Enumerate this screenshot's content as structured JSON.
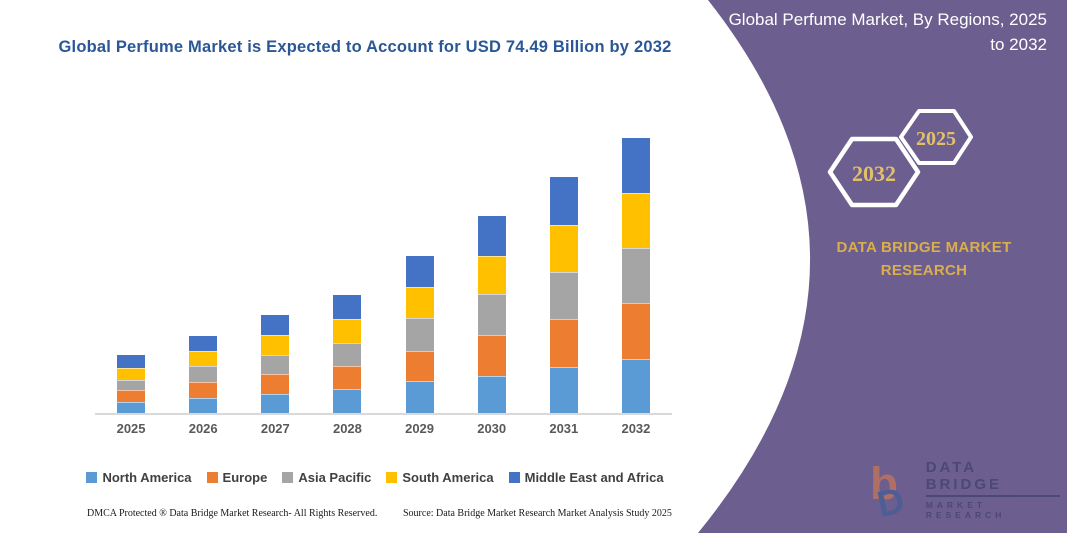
{
  "header": {
    "title": "Global Perfume Market is Expected to Account for USD 74.49 Billion by 2032"
  },
  "sidebar": {
    "title": "Global Perfume Market, By Regions, 2025 to 2032",
    "hexagon_back_label": "2032",
    "hexagon_front_label": "2025",
    "brand": "DATA BRIDGE MARKET RESEARCH",
    "logo": {
      "name": "DATA BRIDGE",
      "subname": "MARKET RESEARCH"
    },
    "colors": {
      "panel_purple": "#6C5E8F",
      "gold_text": "#D9AE4E",
      "hexagon_outline": "#FFFFFF"
    }
  },
  "chart_data": {
    "type": "bar",
    "stacked": true,
    "title": "Global Perfume Market is Expected to Account for USD 74.49 Billion by 2032",
    "unit": "USD Billion",
    "categories": [
      "2025",
      "2026",
      "2027",
      "2028",
      "2029",
      "2030",
      "2031",
      "2032"
    ],
    "series": [
      {
        "name": "North America",
        "color": "#5B9BD5",
        "values": [
          3.1,
          4.0,
          5.2,
          6.6,
          8.8,
          10.0,
          12.4,
          14.7
        ]
      },
      {
        "name": "Europe",
        "color": "#ED7D31",
        "values": [
          3.2,
          4.5,
          5.4,
          6.0,
          8.1,
          11.2,
          13.1,
          15.1
        ]
      },
      {
        "name": "Asia Pacific",
        "color": "#A5A5A5",
        "values": [
          2.7,
          4.1,
          5.2,
          6.4,
          8.7,
          10.9,
          12.8,
          14.9
        ]
      },
      {
        "name": "South America",
        "color": "#FFC000",
        "values": [
          3.2,
          4.1,
          5.4,
          6.3,
          8.6,
          10.4,
          12.6,
          14.8
        ]
      },
      {
        "name": "Middle East and Africa",
        "color": "#4472C4",
        "values": [
          3.5,
          4.2,
          5.3,
          6.5,
          8.3,
          10.9,
          13.1,
          15.0
        ]
      }
    ],
    "totals": [
      15.7,
      20.9,
      26.5,
      31.8,
      42.5,
      53.4,
      64.0,
      74.49
    ],
    "ylim": [
      0,
      80
    ],
    "y_axis_visible": false,
    "gridlines": false,
    "legend_position": "bottom",
    "title_color": "#2B5797",
    "axis_label_color": "#595959"
  },
  "footer": {
    "dmca": "DMCA Protected ® Data Bridge Market Research-  All Rights Reserved.",
    "source": "Source: Data Bridge Market Research  Market Analysis Study 2025"
  }
}
